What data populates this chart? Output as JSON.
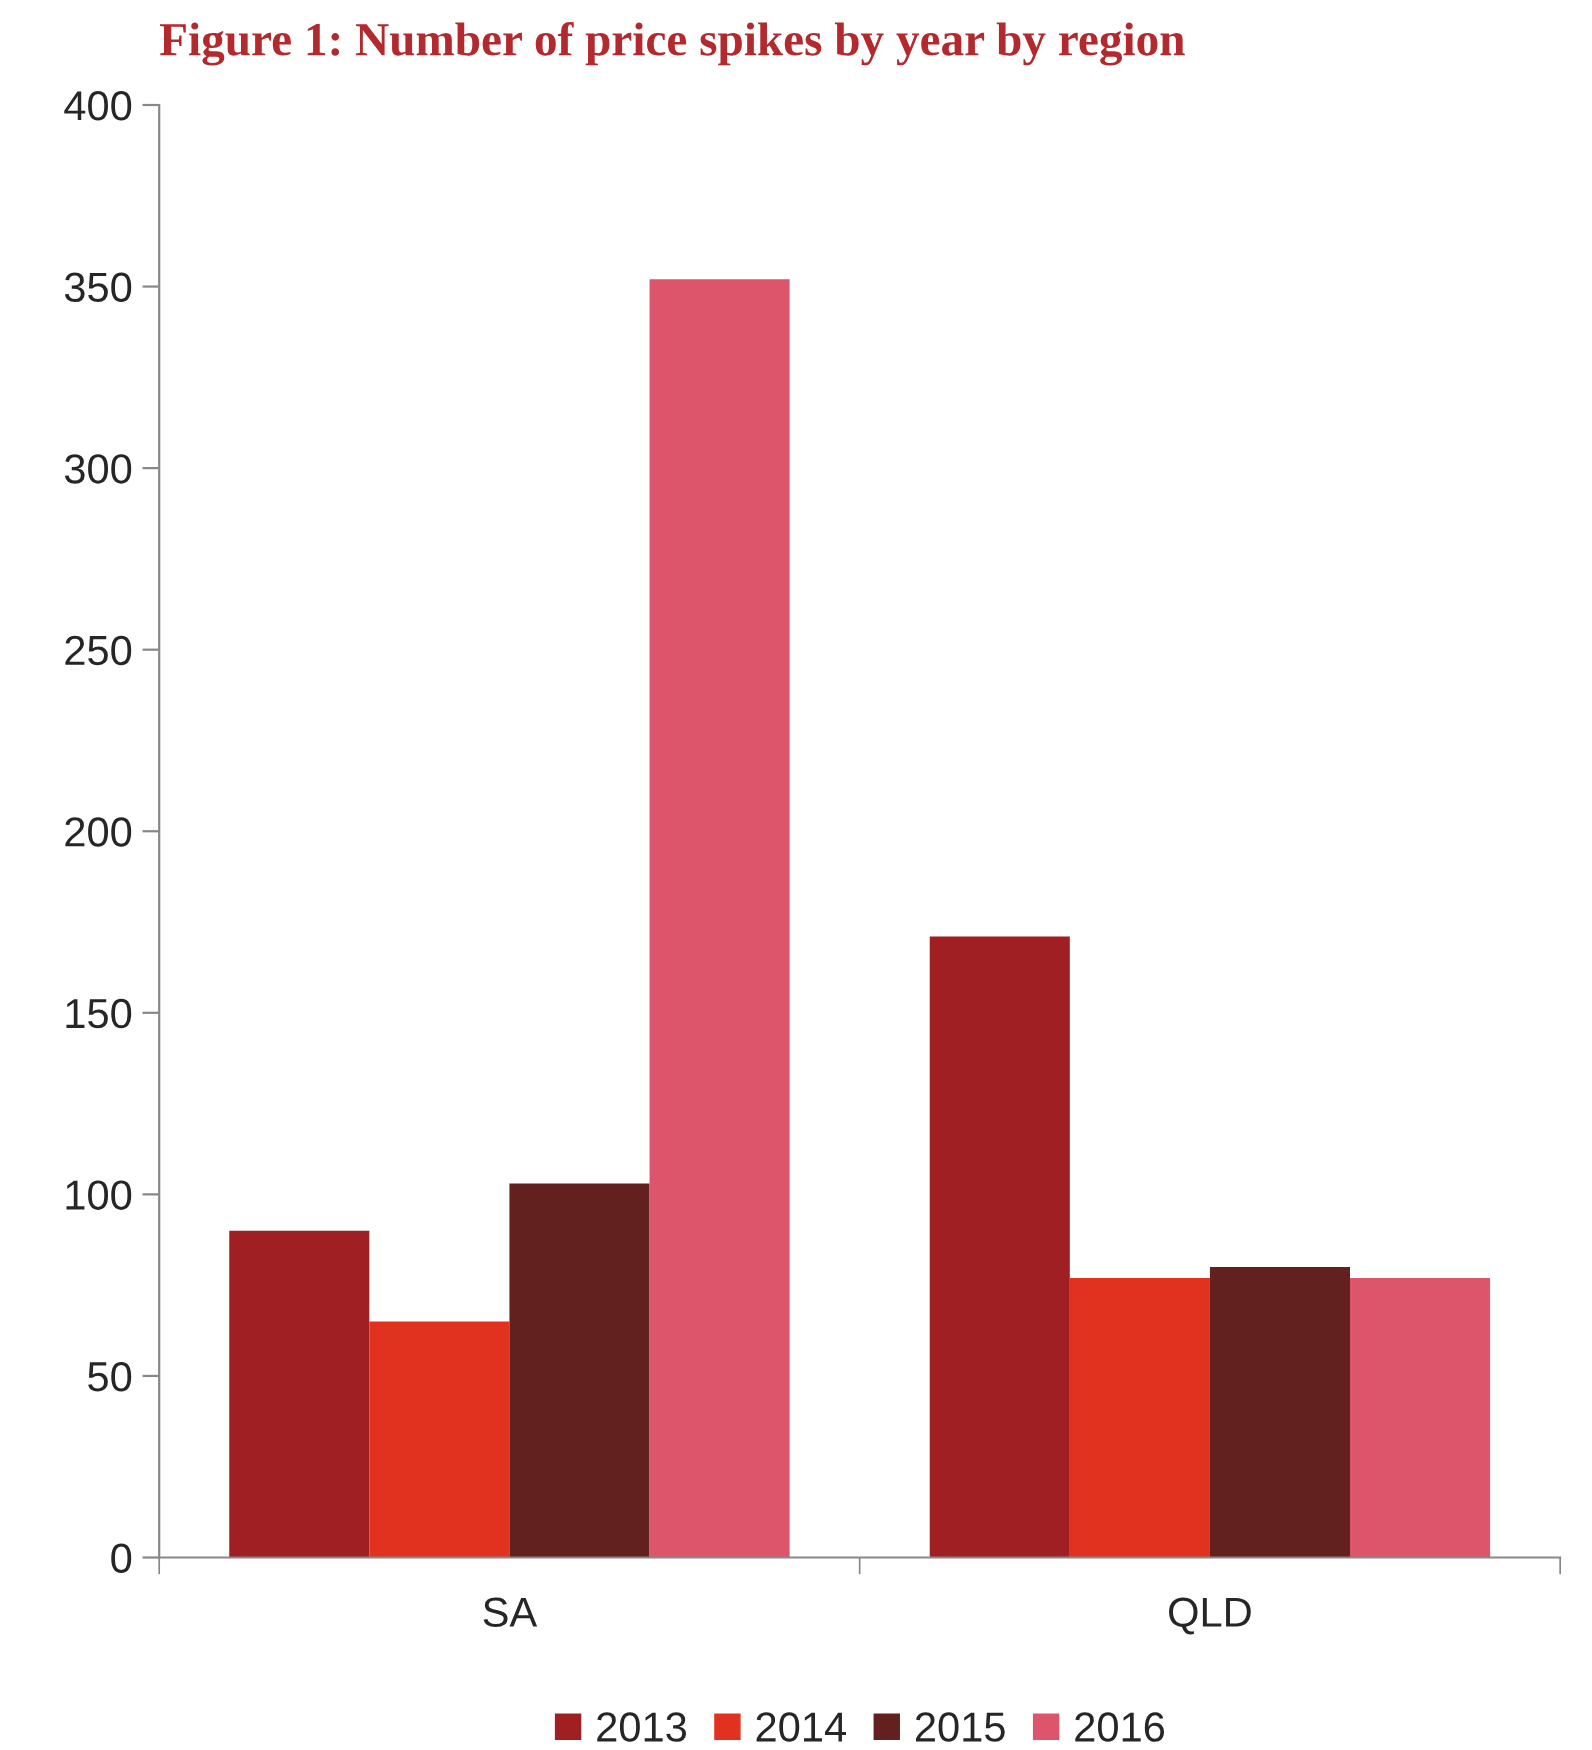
{
  "chart_data": {
    "type": "bar",
    "title": "Figure 1: Number of price spikes by year by region",
    "categories": [
      "SA",
      "QLD"
    ],
    "series": [
      {
        "name": "2013",
        "color": "#a01f22",
        "values": [
          90,
          171
        ]
      },
      {
        "name": "2014",
        "color": "#e0321f",
        "values": [
          65,
          77
        ]
      },
      {
        "name": "2015",
        "color": "#62211f",
        "values": [
          103,
          80
        ]
      },
      {
        "name": "2016",
        "color": "#dc556b",
        "values": [
          352,
          77
        ]
      }
    ],
    "ylim": [
      0,
      400
    ],
    "yticks": [
      0,
      50,
      100,
      150,
      200,
      250,
      300,
      350,
      400
    ],
    "grid": false,
    "legend": "bottom"
  }
}
